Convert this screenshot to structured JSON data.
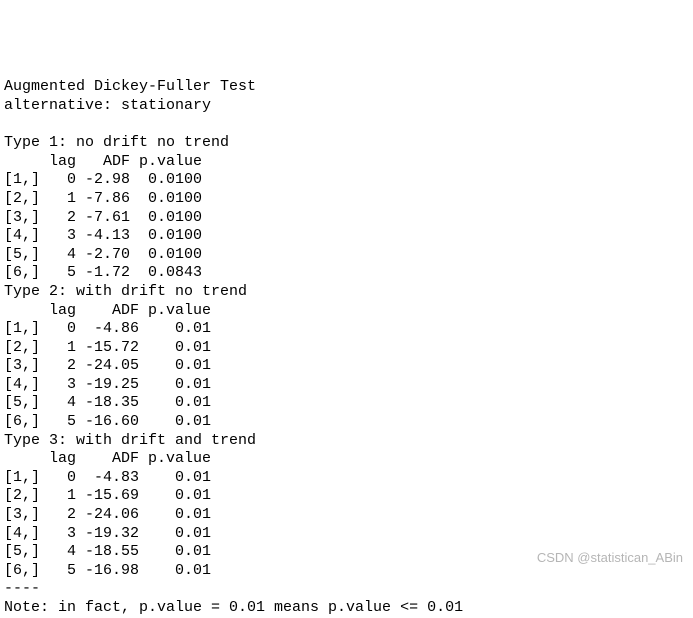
{
  "header": {
    "title": "Augmented Dickey-Fuller Test",
    "alternative": "alternative: stationary"
  },
  "types": [
    {
      "title": "Type 1: no drift no trend",
      "header": "     lag   ADF p.value",
      "rows": [
        "[1,]   0 -2.98  0.0100",
        "[2,]   1 -7.86  0.0100",
        "[3,]   2 -7.61  0.0100",
        "[4,]   3 -4.13  0.0100",
        "[5,]   4 -2.70  0.0100",
        "[6,]   5 -1.72  0.0843"
      ]
    },
    {
      "title": "Type 2: with drift no trend",
      "header": "     lag    ADF p.value",
      "rows": [
        "[1,]   0  -4.86    0.01",
        "[2,]   1 -15.72    0.01",
        "[3,]   2 -24.05    0.01",
        "[4,]   3 -19.25    0.01",
        "[5,]   4 -18.35    0.01",
        "[6,]   5 -16.60    0.01"
      ]
    },
    {
      "title": "Type 3: with drift and trend",
      "header": "     lag    ADF p.value",
      "rows": [
        "[1,]   0  -4.83    0.01",
        "[2,]   1 -15.69    0.01",
        "[3,]   2 -24.06    0.01",
        "[4,]   3 -19.32    0.01",
        "[5,]   4 -18.55    0.01",
        "[6,]   5 -16.98    0.01"
      ]
    }
  ],
  "sep": "----",
  "note": "Note: in fact, p.value = 0.01 means p.value <= 0.01",
  "watermark": "CSDN @statistican_ABin"
}
